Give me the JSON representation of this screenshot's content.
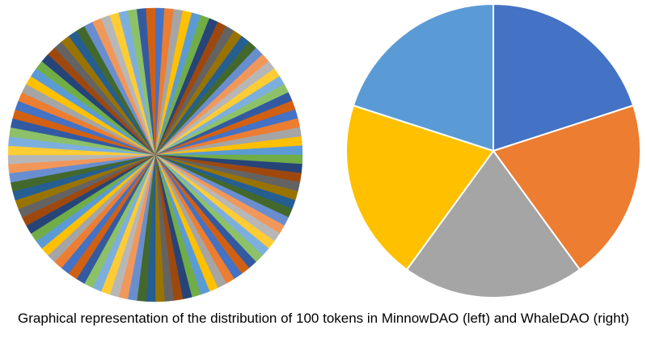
{
  "caption": "Graphical representation of the distribution of 100 tokens in MinnowDAO (left) and WhaleDAO (right)",
  "chart_data": [
    {
      "type": "pie",
      "values": [
        1,
        1,
        1,
        1,
        1,
        1,
        1,
        1,
        1,
        1,
        1,
        1,
        1,
        1,
        1,
        1,
        1,
        1,
        1,
        1,
        1,
        1,
        1,
        1,
        1,
        1,
        1,
        1,
        1,
        1,
        1,
        1,
        1,
        1,
        1,
        1,
        1,
        1,
        1,
        1,
        1,
        1,
        1,
        1,
        1,
        1,
        1,
        1,
        1,
        1,
        1,
        1,
        1,
        1,
        1,
        1,
        1,
        1,
        1,
        1,
        1,
        1,
        1,
        1,
        1,
        1,
        1,
        1,
        1,
        1,
        1,
        1,
        1,
        1,
        1,
        1,
        1,
        1,
        1,
        1,
        1,
        1,
        1,
        1,
        1,
        1,
        1,
        1,
        1,
        1,
        1,
        1,
        1,
        1,
        1,
        1,
        1,
        1,
        1,
        1
      ],
      "colors": [
        "#4472C4",
        "#ED7D31",
        "#A5A5A5",
        "#FFC000",
        "#5B9BD5",
        "#70AD47",
        "#264478",
        "#9E480E",
        "#636363",
        "#997300",
        "#255E91",
        "#43682B",
        "#698ED0",
        "#F1975A",
        "#B7B7B7",
        "#FFCD33",
        "#7CAFDD",
        "#8CC168",
        "#335AA1",
        "#D26012"
      ]
    },
    {
      "type": "pie",
      "values": [
        20,
        20,
        20,
        20,
        20
      ],
      "colors": [
        "#4472C4",
        "#ED7D31",
        "#A5A5A5",
        "#FFC000",
        "#5B9BD5"
      ]
    }
  ]
}
